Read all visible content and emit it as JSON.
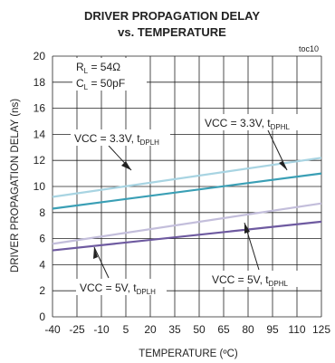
{
  "chart_data": {
    "type": "line",
    "title_line1": "DRIVER PROPAGATION DELAY",
    "title_line2": "vs. TEMPERATURE",
    "figure_id": "toc10",
    "xlabel": "TEMPERATURE (ºC)",
    "ylabel": "DRIVER PROPAGATION DELAY (ns)",
    "xlim": [
      -40,
      125
    ],
    "ylim": [
      0,
      20
    ],
    "x_ticks": [
      "-40",
      "-25",
      "-10",
      "5",
      "20",
      "35",
      "50",
      "65",
      "80",
      "95",
      "110",
      "125"
    ],
    "y_ticks": [
      "0",
      "2",
      "4",
      "6",
      "8",
      "10",
      "12",
      "14",
      "16",
      "18",
      "20"
    ],
    "grid": true,
    "conditions": {
      "rl": {
        "main": "R",
        "sub": "L",
        "rest": " = 54Ω"
      },
      "cl": {
        "main": "C",
        "sub": "L",
        "rest": " = 50pF"
      }
    },
    "series": [
      {
        "key": "s1",
        "x": [
          -40,
          125
        ],
        "y": [
          9.2,
          12.2
        ],
        "color": "#a8d4e2"
      },
      {
        "key": "s2",
        "x": [
          -40,
          125
        ],
        "y": [
          8.3,
          11.0
        ],
        "color": "#3a9fb5"
      },
      {
        "key": "s3",
        "x": [
          -40,
          125
        ],
        "y": [
          5.6,
          8.7
        ],
        "color": "#c3bedb"
      },
      {
        "key": "s4",
        "x": [
          -40,
          125
        ],
        "y": [
          5.1,
          7.3
        ],
        "color": "#6e5aa0"
      }
    ],
    "annotations": [
      {
        "key": "a1",
        "main": "VCC = 3.3V, t",
        "sub": "DPLH"
      },
      {
        "key": "a2",
        "main": "VCC = 3.3V, t",
        "sub": "DPHL"
      },
      {
        "key": "a3",
        "main": "VCC = 5V, t",
        "sub": "DPLH"
      },
      {
        "key": "a4",
        "main": "VCC = 5V, t",
        "sub": "DPHL"
      }
    ]
  }
}
